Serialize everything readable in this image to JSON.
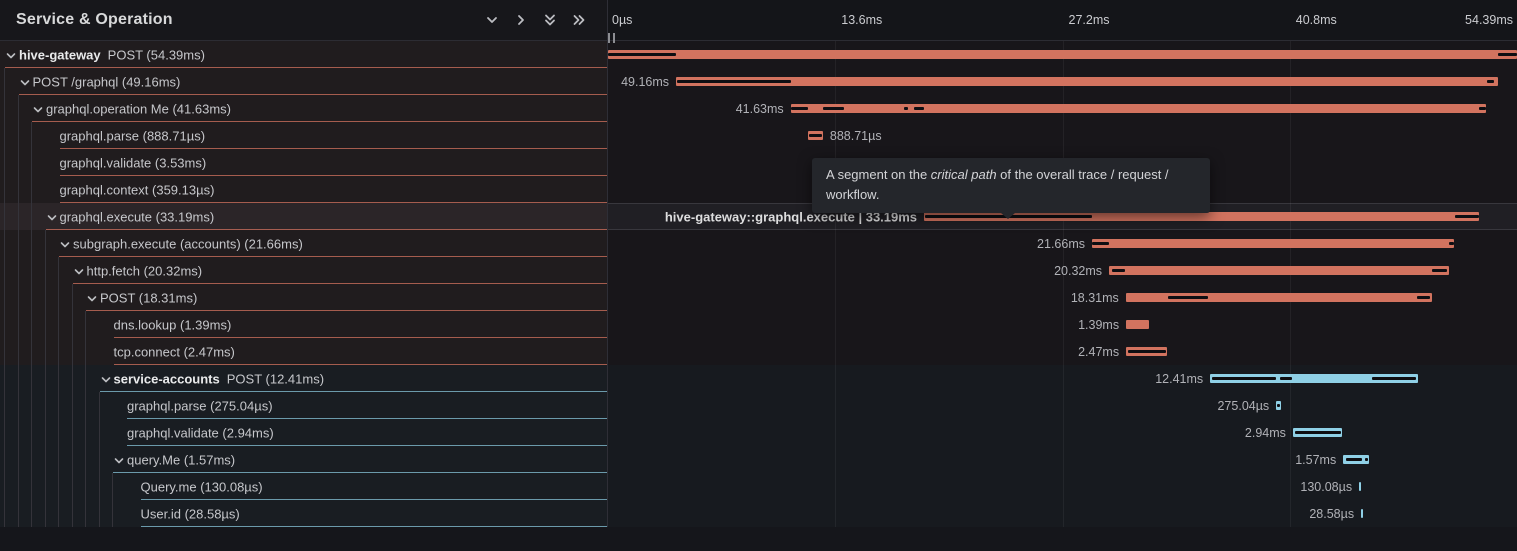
{
  "header": {
    "title": "Service & Operation",
    "icons": [
      "collapse-one-icon",
      "expand-one-icon",
      "collapse-all-icon",
      "expand-all-icon"
    ],
    "resize_handle_icon": "drag-handle"
  },
  "timeline": {
    "total_ms": 54.39,
    "ticks": [
      {
        "label": "0µs",
        "pct": 0,
        "align": "left"
      },
      {
        "label": "13.6ms",
        "pct": 25,
        "align": "left"
      },
      {
        "label": "27.2ms",
        "pct": 50,
        "align": "left"
      },
      {
        "label": "40.8ms",
        "pct": 75,
        "align": "left"
      },
      {
        "label": "54.39ms",
        "pct": 100,
        "align": "right"
      }
    ]
  },
  "tooltip": {
    "before": "A segment on the ",
    "emphasis": "critical path",
    "after": " of the overall trace / request / workflow."
  },
  "colors": {
    "salmon_bar": "#d2735f",
    "blue_bar": "#8fd0e6",
    "critical_path_overlay": "#0e0e12",
    "hover_row": "#2b2528"
  },
  "rows": [
    {
      "id": "hive-gateway-post",
      "depth": 0,
      "chevron": true,
      "service": "hive-gateway",
      "label": "POST (54.39ms)",
      "color": "salmon",
      "start": 0,
      "dur": 54.39,
      "dur_label": "",
      "label_side": "none",
      "critical": [
        [
          0,
          4.07
        ],
        [
          53.23,
          54.39
        ]
      ]
    },
    {
      "id": "post-graphql",
      "depth": 1,
      "chevron": true,
      "service": "",
      "label": "POST /graphql (49.16ms)",
      "color": "salmon",
      "start": 4.07,
      "dur": 49.16,
      "dur_label": "49.16ms",
      "label_side": "left",
      "critical": [
        [
          4.11,
          10.93
        ],
        [
          52.6,
          53.0
        ]
      ]
    },
    {
      "id": "graphql-operation-me",
      "depth": 2,
      "chevron": true,
      "service": "",
      "label": "graphql.operation Me (41.63ms)",
      "color": "salmon",
      "start": 10.93,
      "dur": 41.63,
      "dur_label": "41.63ms",
      "label_side": "left",
      "critical": [
        [
          10.97,
          11.97
        ],
        [
          12.87,
          14.14
        ],
        [
          17.71,
          17.95
        ],
        [
          18.31,
          18.88
        ],
        [
          52.12,
          52.56
        ]
      ]
    },
    {
      "id": "graphql-parse-gw",
      "depth": 3,
      "chevron": false,
      "service": "",
      "label": "graphql.parse (888.71µs)",
      "color": "salmon",
      "start": 11.97,
      "dur": 0.88871,
      "dur_label": "888.71µs",
      "label_side": "right",
      "critical": [
        [
          12.01,
          12.83
        ]
      ]
    },
    {
      "id": "graphql-validate-gw",
      "depth": 3,
      "chevron": false,
      "service": "",
      "label": "graphql.validate (3.53ms)",
      "color": "salmon",
      "start": 14.18,
      "dur": 3.53,
      "dur_label": "3.53ms",
      "label_side": "right",
      "critical": [
        [
          14.23,
          17.66
        ]
      ]
    },
    {
      "id": "graphql-context",
      "depth": 3,
      "chevron": false,
      "service": "",
      "label": "graphql.context (359.13µs)",
      "color": "salmon",
      "start": 17.95,
      "dur": 0.35913,
      "dur_label": "359.13µs",
      "label_side": "right",
      "critical": [
        [
          17.99,
          18.27
        ]
      ]
    },
    {
      "id": "graphql-execute",
      "depth": 3,
      "chevron": true,
      "service": "",
      "label": "graphql.execute (33.19ms)",
      "color": "salmon",
      "start": 18.91,
      "dur": 33.19,
      "dur_label": "hive-gateway::graphql.execute | 33.19ms",
      "label_side": "left",
      "critical": [
        [
          18.98,
          28.96
        ],
        [
          50.68,
          52.1
        ]
      ],
      "hover": true
    },
    {
      "id": "subgraph-execute",
      "depth": 4,
      "chevron": true,
      "service": "",
      "label": "subgraph.execute (accounts) (21.66ms)",
      "color": "salmon",
      "start": 28.96,
      "dur": 21.66,
      "dur_label": "21.66ms",
      "label_side": "left",
      "critical": [
        [
          28.99,
          29.98
        ],
        [
          50.3,
          50.6
        ]
      ]
    },
    {
      "id": "http-fetch",
      "depth": 5,
      "chevron": true,
      "service": "",
      "label": "http.fetch (20.32ms)",
      "color": "salmon",
      "start": 29.98,
      "dur": 20.32,
      "dur_label": "20.32ms",
      "label_side": "left",
      "critical": [
        [
          30.16,
          30.94
        ],
        [
          49.3,
          50.2
        ]
      ]
    },
    {
      "id": "post-subrequest",
      "depth": 6,
      "chevron": true,
      "service": "",
      "label": "POST (18.31ms)",
      "color": "salmon",
      "start": 30.98,
      "dur": 18.31,
      "dur_label": "18.31ms",
      "label_side": "left",
      "critical": [
        [
          33.5,
          35.9
        ],
        [
          48.4,
          49.2
        ]
      ]
    },
    {
      "id": "dns-lookup",
      "depth": 7,
      "chevron": false,
      "service": "",
      "label": "dns.lookup (1.39ms)",
      "color": "salmon",
      "start": 31.0,
      "dur": 1.39,
      "dur_label": "1.39ms",
      "label_side": "left",
      "critical": []
    },
    {
      "id": "tcp-connect",
      "depth": 7,
      "chevron": false,
      "service": "",
      "label": "tcp.connect (2.47ms)",
      "color": "salmon",
      "start": 31.0,
      "dur": 2.47,
      "dur_label": "2.47ms",
      "label_side": "left",
      "critical": [
        [
          31.1,
          33.38
        ]
      ]
    },
    {
      "id": "service-accounts-post",
      "depth": 7,
      "chevron": true,
      "service": "service-accounts",
      "label": "POST (12.41ms)",
      "color": "blue",
      "start": 36.03,
      "dur": 12.41,
      "dur_label": "12.41ms",
      "label_side": "left",
      "critical": [
        [
          36.15,
          40.0
        ],
        [
          40.2,
          40.9
        ],
        [
          45.7,
          48.35
        ]
      ]
    },
    {
      "id": "graphql-parse-acc",
      "depth": 8,
      "chevron": false,
      "service": "",
      "label": "graphql.parse (275.04µs)",
      "color": "blue",
      "start": 39.98,
      "dur": 0.27504,
      "dur_label": "275.04µs",
      "label_side": "left",
      "critical": [
        [
          40.04,
          40.19
        ]
      ]
    },
    {
      "id": "graphql-validate-acc",
      "depth": 8,
      "chevron": false,
      "service": "",
      "label": "graphql.validate (2.94ms)",
      "color": "blue",
      "start": 40.98,
      "dur": 2.94,
      "dur_label": "2.94ms",
      "label_side": "left",
      "critical": [
        [
          41.08,
          43.84
        ]
      ]
    },
    {
      "id": "query-me",
      "depth": 8,
      "chevron": true,
      "service": "",
      "label": "query.Me (1.57ms)",
      "color": "blue",
      "start": 43.99,
      "dur": 1.57,
      "dur_label": "1.57ms",
      "label_side": "left",
      "critical": [
        [
          44.15,
          45.1
        ],
        [
          45.3,
          45.45
        ]
      ]
    },
    {
      "id": "query-me-resolver",
      "depth": 9,
      "chevron": false,
      "service": "",
      "label": "Query.me (130.08µs)",
      "color": "blue",
      "start": 44.94,
      "dur": 0.13008,
      "dur_label": "130.08µs",
      "label_side": "left",
      "critical": []
    },
    {
      "id": "user-id-resolver",
      "depth": 9,
      "chevron": false,
      "service": "",
      "label": "User.id (28.58µs)",
      "color": "blue",
      "start": 45.06,
      "dur": 0.02858,
      "dur_label": "28.58µs",
      "label_side": "left",
      "critical": []
    }
  ]
}
